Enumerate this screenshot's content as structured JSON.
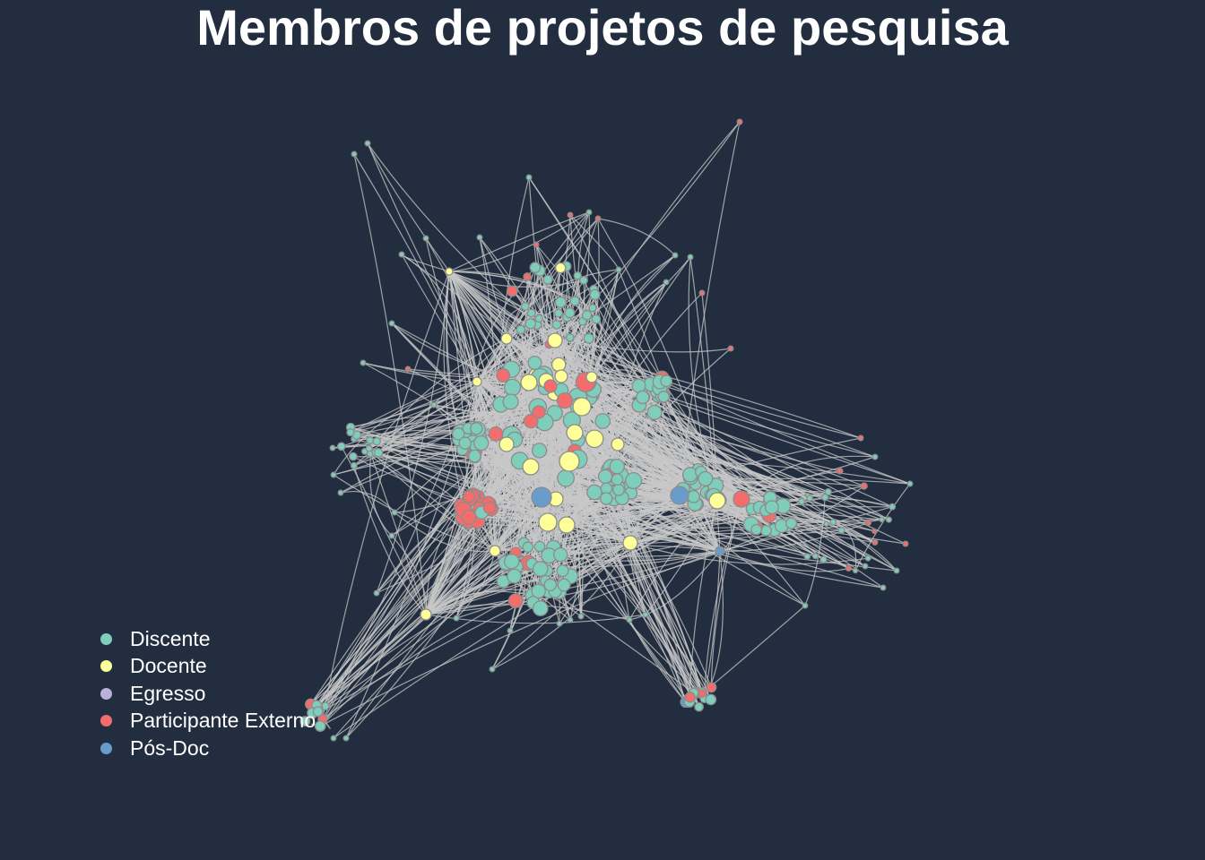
{
  "title": "Membros de projetos de pesquisa",
  "colors": {
    "background": "#222e3f",
    "edge": "#c8c8c8",
    "node_stroke": "#8c8c8c"
  },
  "legend": [
    {
      "label": "Discente",
      "color": "#7fcdbb"
    },
    {
      "label": "Docente",
      "color": "#ffff99"
    },
    {
      "label": "Egresso",
      "color": "#b8b2d6"
    },
    {
      "label": "Participante Externo",
      "color": "#f46d6d"
    },
    {
      "label": "Pós-Doc",
      "color": "#6a9ccb"
    }
  ]
}
